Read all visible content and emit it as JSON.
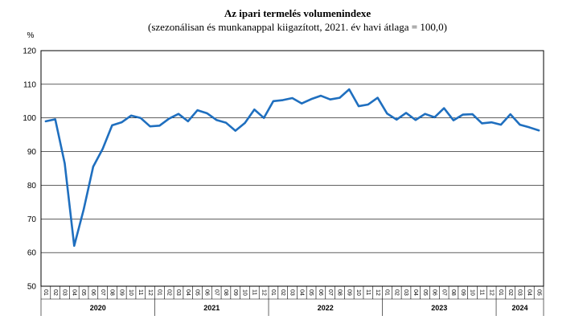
{
  "chart_data": {
    "type": "line",
    "title": "Az ipari termelés volumenindexe",
    "subtitle": "(szezonálisan és munkanappal kiigazított, 2021. év havi átlaga = 100,0)",
    "ylabel": "%",
    "ylim": [
      50,
      120
    ],
    "yticks": [
      50,
      60,
      70,
      80,
      90,
      100,
      110,
      120
    ],
    "grid": true,
    "legend": "none",
    "line_color": "#1f6fbf",
    "month_labels": [
      "01",
      "02",
      "03",
      "04",
      "05",
      "06",
      "07",
      "08",
      "09",
      "10",
      "11",
      "12"
    ],
    "years": [
      "2020",
      "2021",
      "2022",
      "2023",
      "2024"
    ],
    "last_month_index": 4,
    "series": [
      {
        "values": [
          99.0,
          99.6,
          86.5,
          62.0,
          72.8,
          85.5,
          90.8,
          97.8,
          98.7,
          100.7,
          100.0,
          97.5,
          97.7,
          99.8,
          101.2,
          99.0,
          102.3,
          101.4,
          99.4,
          98.6,
          96.2,
          98.5,
          102.5,
          100.0,
          105.0,
          105.3,
          105.9,
          104.3,
          105.6,
          106.6,
          105.5,
          106.0,
          108.5,
          103.5,
          104.0,
          106.0,
          101.3,
          99.5,
          101.5,
          99.4,
          101.2,
          100.2,
          102.9,
          99.3,
          101.0,
          101.1,
          98.4,
          98.7,
          98.0,
          101.1,
          98.0,
          97.2,
          96.3
        ]
      }
    ]
  }
}
